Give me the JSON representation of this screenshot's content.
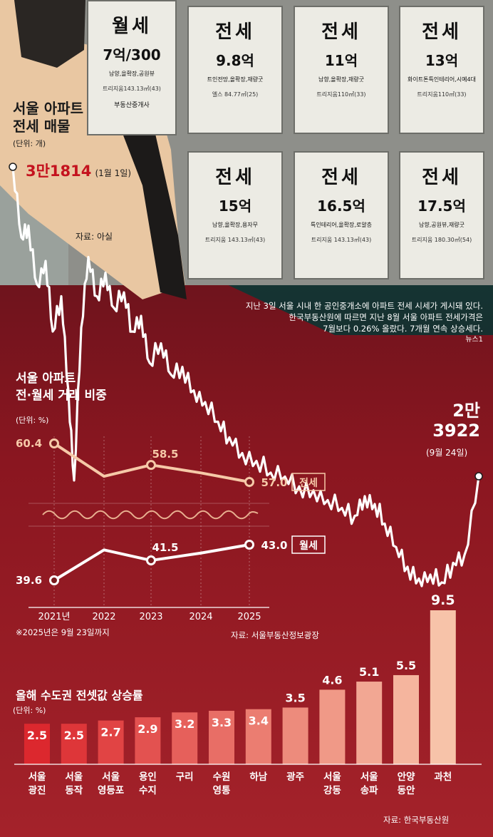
{
  "photo": {
    "signs": [
      {
        "type": "월세",
        "price": "7억/300",
        "detail": "남양,을확장,공원뷰",
        "area": "트리지움143.13㎡(43)",
        "extra": "부동산중개사"
      },
      {
        "type": "전세",
        "price": "9.8억",
        "detail": "트인전망,올확장,재량굿",
        "area": "엘스 84.77㎡(25)"
      },
      {
        "type": "전세",
        "price": "11억",
        "detail": "남향,올확장,재량굿",
        "area": "트리지움110㎡(33)"
      },
      {
        "type": "전세",
        "price": "13억",
        "detail": "화이트톤특인테리어,시예4대",
        "area": "트리지움110㎡(33)"
      },
      {
        "type": "전세",
        "price": "15억",
        "detail": "남향,올확장,용자무",
        "area": "트리지움 143.13㎡(43)"
      },
      {
        "type": "전세",
        "price": "16.5억",
        "detail": "특인테리어,올확장,로얄층",
        "area": "트리지움 143.13㎡(43)"
      },
      {
        "type": "전세",
        "price": "17.5억",
        "detail": "남향,공원뷰,재량굿",
        "area": "트리지움 180.30㎡(54)"
      }
    ],
    "caption_lines": [
      "지난 3일 서울 시내 한 공인중개소에 아파트 전세 시세가 게시돼 있다.",
      "한국부동산원에 따르면 지난 8월 서울 아파트 전세가격은",
      "7월보다 0.26% 올랐다. 7개월 연속 상승세다."
    ],
    "credit": "뉴스1"
  },
  "listings": {
    "title_line1": "서울 아파트",
    "title_line2": "전세 매물",
    "unit": "(단위: 개)",
    "start_value": "3만1814",
    "start_date": "(1월 1일)",
    "source": "자료: 아실",
    "end_value_line1": "2만",
    "end_value_line2": "3922",
    "end_date": "(9월 24일)",
    "line_color": "#ffffff"
  },
  "ratio": {
    "title_line1": "서울 아파트",
    "title_line2": "전·월세 거래 비중",
    "unit": "(단위: %)",
    "jeonse_label": "전세",
    "wolse_label": "월세",
    "note": "※2025년은 9월 23일까지",
    "source": "자료: 서울부동산정보광장",
    "years": [
      "2021년",
      "2022",
      "2023",
      "2024",
      "2025"
    ],
    "jeonse_color": "#f6c9a8",
    "wolse_color": "#ffffff"
  },
  "rise": {
    "title": "올해 수도권 전셋값 상승률",
    "unit": "(단위: %)",
    "source": "자료: 한국부동산원"
  },
  "chart_data": [
    {
      "type": "line",
      "title": "서울 아파트 전세 매물",
      "unit": "개",
      "series": [
        {
          "name": "서울 아파트 전세 매물",
          "start": {
            "date": "1월 1일",
            "value": 31814
          },
          "end": {
            "date": "9월 24일",
            "value": 23922
          }
        }
      ]
    },
    {
      "type": "line",
      "title": "서울 아파트 전·월세 거래 비중",
      "unit": "%",
      "x": [
        "2021년",
        "2022",
        "2023",
        "2024",
        "2025"
      ],
      "series": [
        {
          "name": "전세",
          "values": [
            60.4,
            57.5,
            58.5,
            57.8,
            57.0
          ],
          "labels": [
            "60.4",
            "",
            "58.5",
            "",
            "57.0"
          ]
        },
        {
          "name": "월세",
          "values": [
            39.6,
            42.5,
            41.5,
            42.2,
            43.0
          ],
          "labels": [
            "39.6",
            "",
            "41.5",
            "",
            "43.0"
          ]
        }
      ]
    },
    {
      "type": "bar",
      "title": "올해 수도권 전셋값 상승률",
      "unit": "%",
      "categories": [
        [
          "서울",
          "광진"
        ],
        [
          "서울",
          "동작"
        ],
        [
          "서울",
          "영등포"
        ],
        [
          "용인",
          "수지"
        ],
        [
          "구리"
        ],
        [
          "수원",
          "영통"
        ],
        [
          "하남"
        ],
        [
          "광주"
        ],
        [
          "서울",
          "강동"
        ],
        [
          "서울",
          "송파"
        ],
        [
          "안양",
          "동안"
        ],
        [
          "과천"
        ]
      ],
      "values": [
        2.5,
        2.5,
        2.7,
        2.9,
        3.2,
        3.3,
        3.4,
        3.5,
        4.6,
        5.1,
        5.5,
        9.5
      ],
      "labels": [
        "2.5",
        "2.5",
        "2.7",
        "2.9",
        "3.2",
        "3.3",
        "3.4",
        "3.5",
        "4.6",
        "5.1",
        "5.5",
        "9.5"
      ]
    }
  ]
}
